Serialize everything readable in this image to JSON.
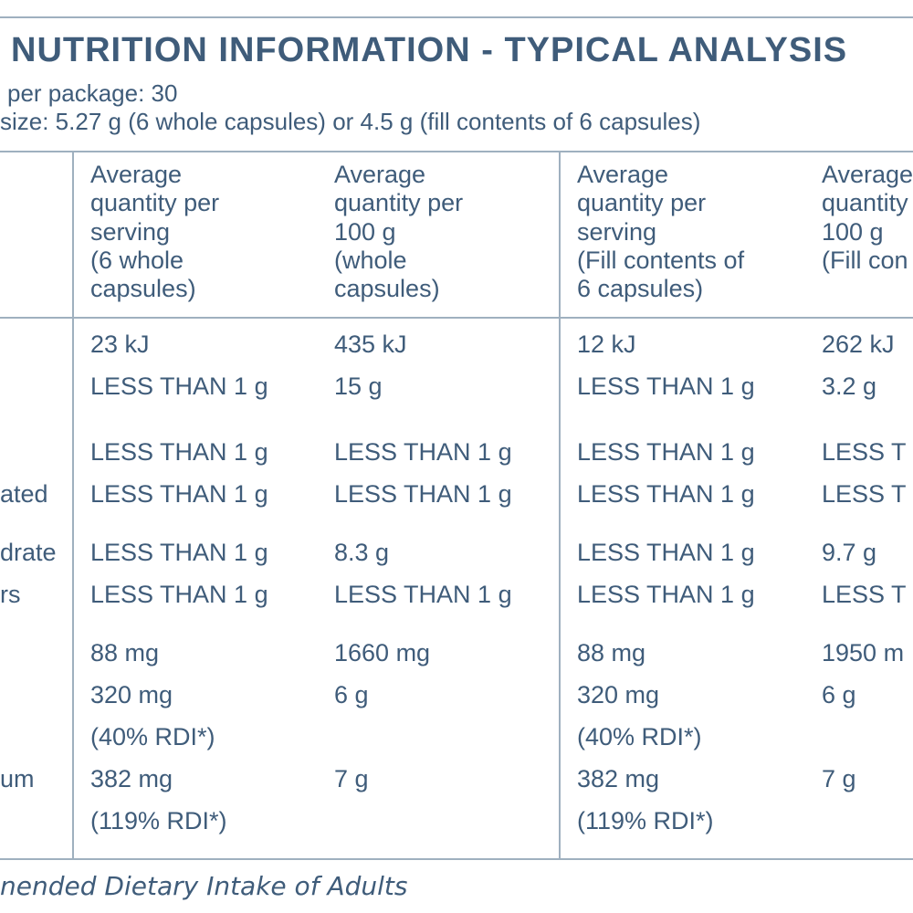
{
  "header": {
    "title": "NUTRITION INFORMATION - TYPICAL ANALYSIS",
    "servings": "per package: 30",
    "serving_size": "size: 5.27 g (6 whole capsules) or 4.5 g (fill contents of 6 capsules)"
  },
  "table": {
    "columns": [
      [
        "Average",
        "quantity per",
        "serving",
        "(6 whole",
        "capsules)"
      ],
      [
        "Average",
        "quantity per",
        "100 g",
        "(whole",
        "capsules)"
      ],
      [
        "Average",
        "quantity per",
        "serving",
        "(Fill contents of",
        "6 capsules)"
      ],
      [
        "Average",
        "quantity",
        "100 g",
        "(Fill con"
      ]
    ],
    "rows": [
      {
        "label": null,
        "cells": [
          "23 kJ",
          "435 kJ",
          "12 kJ",
          "262 kJ"
        ]
      },
      {
        "label": null,
        "cells": [
          "LESS THAN 1 g",
          "15 g",
          "LESS THAN 1 g",
          "3.2 g"
        ]
      },
      {
        "label": null,
        "cells": [
          "LESS THAN 1 g",
          "LESS THAN 1 g",
          "LESS THAN 1 g",
          "LESS T"
        ]
      },
      {
        "label": "ated",
        "cells": [
          "LESS THAN 1 g",
          "LESS THAN 1 g",
          "LESS THAN 1 g",
          "LESS T"
        ]
      },
      {
        "label": "drate",
        "cells": [
          "LESS THAN 1 g",
          "8.3 g",
          "LESS THAN 1 g",
          "9.7 g"
        ]
      },
      {
        "label": "rs",
        "cells": [
          "LESS THAN 1 g",
          "LESS THAN 1 g",
          "LESS THAN 1 g",
          "LESS T"
        ]
      },
      {
        "label": null,
        "cells": [
          "88 mg",
          "1660 mg",
          "88 mg",
          "1950 m"
        ]
      },
      {
        "label": null,
        "cells": [
          "320 mg",
          "6 g",
          "320 mg",
          "6 g"
        ]
      },
      {
        "label": null,
        "cells": [
          "(40% RDI*)",
          null,
          "(40% RDI*)",
          null
        ]
      },
      {
        "label": "um",
        "cells": [
          "382 mg",
          "7 g",
          "382 mg",
          "7 g"
        ]
      },
      {
        "label": null,
        "cells": [
          "(119% RDI*)",
          null,
          "(119% RDI*)",
          null
        ]
      }
    ]
  },
  "footer": "nended Dietary Intake of Adults"
}
